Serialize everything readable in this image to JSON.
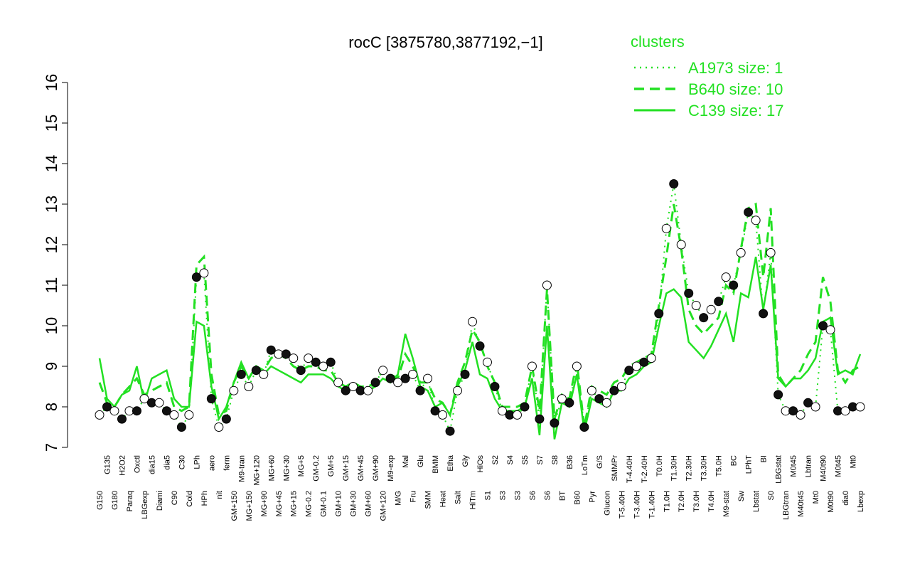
{
  "chart_data": {
    "type": "line",
    "title": "rocC [3875780,3877192,−1]",
    "legend_title": "clusters",
    "legend_position": "top-right",
    "ylim": [
      7,
      16
    ],
    "yticks": [
      7,
      8,
      9,
      10,
      11,
      12,
      13,
      14,
      15,
      16
    ],
    "categories": [
      "G150",
      "G135",
      "G180",
      "H2O2",
      "Paraq",
      "Oxctl",
      "LBGexp",
      "dia15",
      "Diami",
      "dia5",
      "C90",
      "C30",
      "Cold",
      "LPh",
      "HPh",
      "aero",
      "nit",
      "ferm",
      "GM+150",
      "M9-tran",
      "MG+150",
      "MG+120",
      "MG+90",
      "MG+60",
      "MG+45",
      "MG+30",
      "MG+15",
      "MG+5",
      "MG-0.2",
      "GM-0.2",
      "GM-0.1",
      "GM+5",
      "GM+10",
      "GM+15",
      "GM+30",
      "GM+45",
      "GM+60",
      "GM+90",
      "GM+120",
      "M9-exp",
      "M/G",
      "Mal",
      "Fru",
      "Glu",
      "SMM",
      "BMM",
      "Heat",
      "Etha",
      "Salt",
      "Gly",
      "HiTm",
      "HiOs",
      "S1",
      "S2",
      "S3",
      "S4",
      "S3",
      "S5",
      "S6",
      "S7",
      "S6",
      "S8",
      "BT",
      "B36",
      "B60",
      "LoTm",
      "Pyr",
      "G/S",
      "Glucon",
      "SMMPr",
      "T-5.40H",
      "T-4.40H",
      "T-3.40H",
      "T-2.40H",
      "T-1.40H",
      "T0.0H",
      "T1.0H",
      "T1.30H",
      "T2.0H",
      "T2.30H",
      "T3.0H",
      "T3.30H",
      "T4.0H",
      "T5.0H",
      "M9-stat",
      "BC",
      "Sw",
      "LPhT",
      "Lbstat",
      "BI",
      "S0",
      "LBGstat",
      "LBGtran",
      "M0t45",
      "M40t45",
      "Lbtran",
      "Mt0",
      "M40t90",
      "M0t90",
      "M0t45",
      "dia0",
      "Mt0",
      "Lbexp"
    ],
    "series": [
      {
        "name": "A1973 size: 1",
        "color": "#22e022",
        "line_style": "dotted",
        "markers": true,
        "values": [
          7.8,
          8.0,
          7.9,
          7.7,
          7.9,
          7.9,
          8.2,
          8.1,
          8.1,
          7.9,
          7.8,
          7.5,
          7.8,
          11.2,
          11.3,
          8.2,
          7.5,
          7.7,
          8.4,
          8.8,
          8.5,
          8.9,
          8.8,
          9.4,
          9.3,
          9.3,
          9.2,
          8.9,
          9.2,
          9.1,
          9.0,
          9.1,
          8.6,
          8.4,
          8.5,
          8.4,
          8.4,
          8.6,
          8.9,
          8.7,
          8.6,
          8.7,
          8.8,
          8.4,
          8.7,
          7.9,
          7.8,
          7.4,
          8.4,
          8.8,
          10.1,
          9.5,
          9.1,
          8.5,
          7.9,
          7.8,
          7.8,
          8.0,
          9.0,
          7.7,
          11.0,
          7.6,
          8.2,
          8.1,
          9.0,
          7.5,
          8.4,
          8.2,
          8.1,
          8.4,
          8.5,
          8.9,
          9.0,
          9.1,
          9.2,
          10.3,
          12.4,
          13.5,
          12.0,
          10.8,
          10.5,
          10.2,
          10.4,
          10.6,
          11.2,
          11.0,
          11.8,
          12.8,
          12.6,
          10.3,
          11.8,
          8.3,
          7.9,
          7.9,
          7.8,
          8.1,
          8.0,
          10.0,
          9.9,
          7.9,
          7.9,
          8.0,
          8.0
        ]
      },
      {
        "name": "B640 size: 10",
        "color": "#22e022",
        "line_style": "dashed",
        "markers": false,
        "values": [
          8.6,
          8.1,
          8.0,
          8.3,
          8.5,
          8.7,
          8.3,
          8.4,
          8.5,
          8.6,
          8.0,
          7.9,
          8.0,
          11.5,
          11.7,
          8.8,
          7.8,
          7.9,
          8.6,
          9.0,
          8.7,
          9.0,
          8.9,
          9.2,
          9.3,
          9.2,
          9.0,
          8.9,
          9.0,
          9.0,
          8.9,
          8.9,
          8.6,
          8.5,
          8.6,
          8.5,
          8.5,
          8.6,
          8.9,
          8.8,
          8.7,
          9.3,
          9.0,
          8.6,
          8.6,
          8.2,
          8.1,
          7.8,
          8.6,
          9.1,
          9.9,
          9.6,
          9.0,
          8.6,
          8.0,
          8.0,
          8.0,
          8.1,
          9.0,
          7.9,
          10.9,
          7.7,
          8.3,
          8.2,
          9.1,
          7.5,
          8.5,
          8.4,
          8.3,
          8.6,
          8.7,
          9.0,
          9.1,
          9.2,
          9.3,
          10.5,
          11.7,
          13.0,
          11.9,
          10.4,
          10.0,
          9.8,
          10.0,
          10.2,
          11.0,
          10.8,
          11.9,
          12.9,
          13.0,
          11.2,
          12.9,
          8.8,
          8.5,
          8.7,
          8.9,
          9.3,
          9.6,
          11.2,
          10.6,
          8.9,
          8.6,
          8.9,
          9.0
        ]
      },
      {
        "name": "C139 size: 17",
        "color": "#22e022",
        "line_style": "solid",
        "markers": false,
        "values": [
          9.2,
          8.2,
          8.0,
          8.3,
          8.4,
          9.0,
          8.1,
          8.7,
          8.8,
          8.9,
          8.2,
          8.0,
          8.0,
          10.1,
          10.0,
          8.5,
          7.7,
          8.0,
          8.6,
          9.1,
          8.7,
          9.0,
          8.8,
          9.0,
          8.9,
          8.8,
          8.7,
          8.6,
          8.8,
          8.8,
          8.8,
          8.7,
          8.5,
          8.4,
          8.5,
          8.4,
          8.4,
          8.5,
          8.7,
          8.6,
          8.8,
          9.8,
          9.2,
          8.5,
          8.4,
          8.0,
          8.1,
          7.8,
          8.5,
          8.9,
          9.6,
          8.8,
          8.7,
          8.2,
          7.9,
          7.9,
          7.9,
          8.0,
          8.7,
          7.3,
          10.0,
          7.2,
          8.1,
          8.0,
          8.8,
          7.4,
          8.2,
          8.1,
          8.0,
          8.4,
          8.4,
          8.7,
          8.8,
          9.0,
          9.1,
          10.0,
          10.8,
          10.9,
          10.7,
          9.6,
          9.4,
          9.2,
          9.5,
          9.9,
          10.3,
          9.6,
          10.8,
          10.7,
          11.7,
          10.4,
          11.5,
          8.7,
          8.5,
          8.7,
          8.7,
          8.9,
          9.2,
          10.1,
          10.2,
          8.8,
          8.9,
          8.8,
          9.3
        ]
      }
    ]
  }
}
